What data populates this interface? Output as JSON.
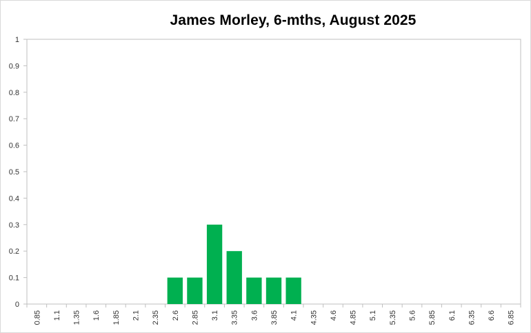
{
  "chart_data": {
    "type": "bar",
    "title": "James Morley, 6-mths, August 2025",
    "xlabel": "",
    "ylabel": "",
    "categories": [
      "0.85",
      "1.1",
      "1.35",
      "1.6",
      "1.85",
      "2.1",
      "2.35",
      "2.6",
      "2.85",
      "3.1",
      "3.35",
      "3.6",
      "3.85",
      "4.1",
      "4.35",
      "4.6",
      "4.85",
      "5.1",
      "5.35",
      "5.6",
      "5.85",
      "6.1",
      "6.35",
      "6.6",
      "6.85"
    ],
    "values": [
      0,
      0,
      0,
      0,
      0,
      0,
      0,
      0.1,
      0.1,
      0.3,
      0.2,
      0.1,
      0.1,
      0.1,
      0,
      0,
      0,
      0,
      0,
      0,
      0,
      0,
      0,
      0,
      0
    ],
    "yticks": [
      "0",
      "0.1",
      "0.2",
      "0.3",
      "0.4",
      "0.5",
      "0.6",
      "0.7",
      "0.8",
      "0.9",
      "1"
    ],
    "ylim": [
      0,
      1
    ],
    "grid": false,
    "legend": "none",
    "colors": {
      "bar": "#00b050",
      "axis": "#bfbfbf",
      "tick_label": "#333333"
    }
  }
}
